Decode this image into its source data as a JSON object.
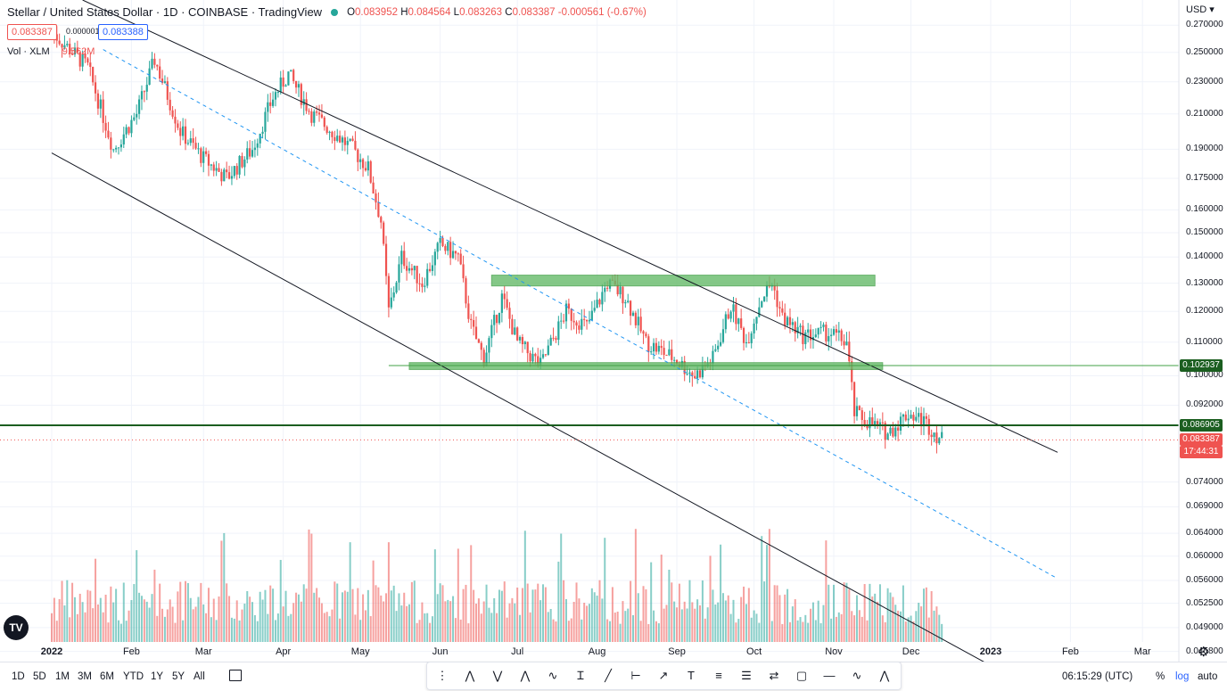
{
  "header": {
    "title": "Stellar / United States Dollar · 1D · COINBASE · TradingView",
    "o_label": "O",
    "o": "0.083952",
    "h_label": "H",
    "h": "0.084564",
    "l_label": "L",
    "l": "0.083263",
    "c_label": "C",
    "c": "0.083387",
    "change": "-0.000561 (-0.67%)"
  },
  "quote": {
    "sell": "0.083387",
    "spread": "0.000001",
    "buy": "0.083388"
  },
  "volume": {
    "label": "Vol · XLM",
    "value": "9.562M"
  },
  "currency": "USD",
  "colors": {
    "up": "#26a69a",
    "down": "#ef5350",
    "zone": "#66bb6a",
    "line": "#131722",
    "dashed": "#2196f3",
    "level": "#1b5e20"
  },
  "chart_data": {
    "type": "candlestick",
    "title": "Stellar / United States Dollar · 1D · COINBASE · TradingView",
    "yscale": "log",
    "ylim": [
      0.0445,
      0.29
    ],
    "x_ticks": [
      "2022",
      "Feb",
      "Mar",
      "Apr",
      "May",
      "Jun",
      "Jul",
      "Aug",
      "Sep",
      "Oct",
      "Nov",
      "Dec",
      "2023",
      "Feb",
      "Mar"
    ],
    "y_ticks": [
      "0.270000",
      "0.250000",
      "0.230000",
      "0.210000",
      "0.190000",
      "0.175000",
      "0.160000",
      "0.150000",
      "0.140000",
      "0.130000",
      "0.120000",
      "0.110000",
      "0.100000",
      "0.092000",
      "0.074000",
      "0.069000",
      "0.064000",
      "0.060000",
      "0.056000",
      "0.052500",
      "0.049000",
      "0.045800"
    ],
    "price_tags": [
      {
        "value": "0.102937",
        "bg": "#1b5e20"
      },
      {
        "value": "0.086905",
        "bg": "#1b5e20"
      },
      {
        "value": "0.083387",
        "bg": "#ef5350",
        "countdown": "17:44:31"
      }
    ],
    "trend_points": [
      {
        "x": "2022-01-01",
        "y": 0.265
      },
      {
        "x": "2022-01-15",
        "y": 0.24
      },
      {
        "x": "2022-01-25",
        "y": 0.19
      },
      {
        "x": "2022-02-03",
        "y": 0.21
      },
      {
        "x": "2022-02-10",
        "y": 0.245
      },
      {
        "x": "2022-02-20",
        "y": 0.2
      },
      {
        "x": "2022-03-01",
        "y": 0.185
      },
      {
        "x": "2022-03-10",
        "y": 0.175
      },
      {
        "x": "2022-03-20",
        "y": 0.19
      },
      {
        "x": "2022-03-28",
        "y": 0.22
      },
      {
        "x": "2022-04-03",
        "y": 0.235
      },
      {
        "x": "2022-04-12",
        "y": 0.21
      },
      {
        "x": "2022-04-20",
        "y": 0.2
      },
      {
        "x": "2022-04-28",
        "y": 0.19
      },
      {
        "x": "2022-05-04",
        "y": 0.18
      },
      {
        "x": "2022-05-09",
        "y": 0.155
      },
      {
        "x": "2022-05-12",
        "y": 0.12
      },
      {
        "x": "2022-05-17",
        "y": 0.14
      },
      {
        "x": "2022-05-25",
        "y": 0.13
      },
      {
        "x": "2022-06-01",
        "y": 0.145
      },
      {
        "x": "2022-06-08",
        "y": 0.14
      },
      {
        "x": "2022-06-13",
        "y": 0.115
      },
      {
        "x": "2022-06-18",
        "y": 0.105
      },
      {
        "x": "2022-06-25",
        "y": 0.125
      },
      {
        "x": "2022-07-01",
        "y": 0.11
      },
      {
        "x": "2022-07-10",
        "y": 0.103
      },
      {
        "x": "2022-07-20",
        "y": 0.12
      },
      {
        "x": "2022-07-28",
        "y": 0.115
      },
      {
        "x": "2022-08-05",
        "y": 0.13
      },
      {
        "x": "2022-08-12",
        "y": 0.125
      },
      {
        "x": "2022-08-20",
        "y": 0.11
      },
      {
        "x": "2022-08-31",
        "y": 0.105
      },
      {
        "x": "2022-09-08",
        "y": 0.1
      },
      {
        "x": "2022-09-15",
        "y": 0.105
      },
      {
        "x": "2022-09-22",
        "y": 0.122
      },
      {
        "x": "2022-09-28",
        "y": 0.11
      },
      {
        "x": "2022-10-04",
        "y": 0.125
      },
      {
        "x": "2022-10-08",
        "y": 0.13
      },
      {
        "x": "2022-10-12",
        "y": 0.118
      },
      {
        "x": "2022-10-20",
        "y": 0.112
      },
      {
        "x": "2022-10-30",
        "y": 0.113
      },
      {
        "x": "2022-11-06",
        "y": 0.11
      },
      {
        "x": "2022-11-09",
        "y": 0.09
      },
      {
        "x": "2022-11-14",
        "y": 0.088
      },
      {
        "x": "2022-11-22",
        "y": 0.085
      },
      {
        "x": "2022-11-30",
        "y": 0.09
      },
      {
        "x": "2022-12-06",
        "y": 0.088
      },
      {
        "x": "2022-12-13",
        "y": 0.0834
      }
    ],
    "horizontal_levels": [
      0.102937,
      0.086905
    ],
    "zones": [
      {
        "y_low": 0.129,
        "y_high": 0.133,
        "x_start": "2022-06-21",
        "x_end": "2022-11-17"
      },
      {
        "y_low": 0.1018,
        "y_high": 0.1038,
        "x_start": "2022-05-20",
        "x_end": "2022-11-20"
      }
    ],
    "trendlines": [
      {
        "style": "solid",
        "from": {
          "x": "2022-01-13",
          "y": 0.29
        },
        "to": {
          "x": "2023-01-27",
          "y": 0.0805
        }
      },
      {
        "style": "solid",
        "from": {
          "x": "2022-01-01",
          "y": 0.188
        },
        "to": {
          "x": "2023-01-01",
          "y": 0.044
        }
      },
      {
        "style": "dashed",
        "from": {
          "x": "2022-01-21",
          "y": 0.252
        },
        "to": {
          "x": "2023-01-27",
          "y": 0.0563
        }
      }
    ]
  },
  "x_axis_labels": [
    "2022",
    "Feb",
    "Mar",
    "Apr",
    "May",
    "Jun",
    "Jul",
    "Aug",
    "Sep",
    "Oct",
    "Nov",
    "Dec",
    "2023",
    "Feb",
    "Mar"
  ],
  "bottom": {
    "ranges": [
      "1D",
      "5D",
      "1M",
      "3M",
      "6M",
      "YTD",
      "1Y",
      "5Y",
      "All"
    ],
    "time": "06:15:29 (UTC)",
    "percent": "%",
    "log": "log",
    "auto": "auto"
  },
  "toolbar_icons": [
    "grip-icon",
    "xabcd-pattern-icon",
    "cypher-pattern-icon",
    "abcd-pattern-icon",
    "elliott-wave-icon",
    "price-range-icon",
    "trend-line-icon",
    "date-range-icon",
    "arrow-icon",
    "text-icon",
    "pitchfork-icon",
    "fib-retracement-icon",
    "long-position-icon",
    "rectangle-icon",
    "horizontal-line-icon",
    "elliott-correction-icon",
    "head-shoulders-icon"
  ],
  "logo": "TV"
}
